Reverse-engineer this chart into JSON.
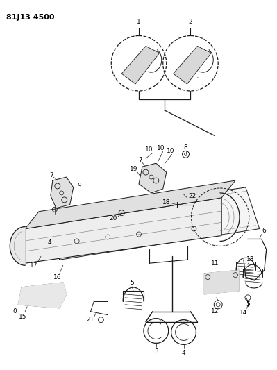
{
  "title": "81J13 4500",
  "bg_color": "#ffffff",
  "line_color": "#1a1a1a",
  "title_fontsize": 8,
  "label_fontsize": 6.5,
  "fig_width": 3.99,
  "fig_height": 5.33,
  "dpi": 100
}
